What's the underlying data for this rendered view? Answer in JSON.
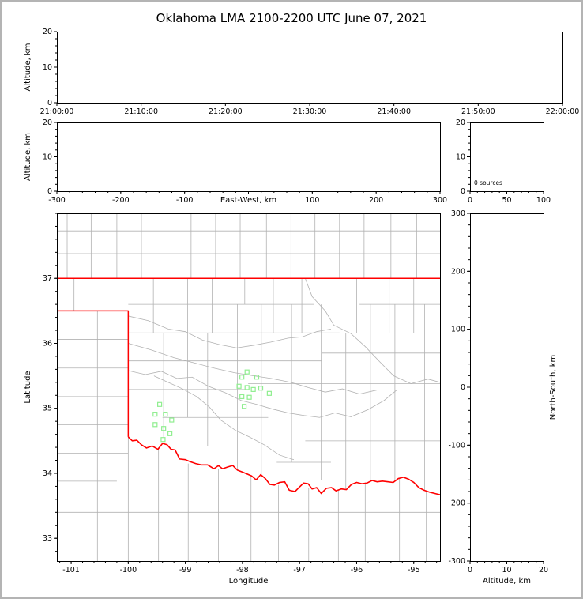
{
  "figure": {
    "title": "Oklahoma LMA 2100-2200 UTC June 07, 2021",
    "colors": {
      "background": "#ffffff",
      "frame": "#b4b4b4",
      "axis": "#000000",
      "county_line": "#b2b2b2",
      "river_line": "#b2b2b2",
      "state_border": "#ff0000",
      "station_marker": "#90ee90"
    }
  },
  "chart_data": [
    {
      "id": "time_height",
      "name": "time vs altitude panel",
      "type": "scatter",
      "ylabel": "Altitude, km",
      "ylim": [
        0,
        20
      ],
      "yticks": [
        0,
        10,
        20
      ],
      "y_tick_labels": [
        "0",
        "10",
        "20"
      ],
      "x_tick_labels": [
        "21:00:00",
        "21:10:00",
        "21:20:00",
        "21:30:00",
        "21:40:00",
        "21:50:00",
        "22:00:00"
      ],
      "points": []
    },
    {
      "id": "ew_height",
      "name": "east-west vs altitude panel",
      "type": "scatter",
      "xlabel": "East-West, km",
      "ylabel": "Altitude, km",
      "xlim": [
        -300,
        300
      ],
      "xticks": [
        -300,
        -200,
        -100,
        0,
        100,
        200,
        300
      ],
      "x_tick_labels": [
        "-300",
        "-200",
        "-100",
        "",
        "100",
        "200",
        "300"
      ],
      "ylim": [
        0,
        20
      ],
      "yticks": [
        0,
        10,
        20
      ],
      "y_tick_labels": [
        "0",
        "10",
        "20"
      ],
      "points": []
    },
    {
      "id": "altitude_histogram",
      "name": "source count vs altitude panel",
      "type": "line",
      "annotation": "0 sources",
      "xlim": [
        0,
        100
      ],
      "xticks": [
        0,
        50,
        100
      ],
      "x_tick_labels": [
        "0",
        "50",
        "100"
      ],
      "ylim": [
        0,
        20
      ],
      "yticks": [
        0,
        10,
        20
      ],
      "y_tick_labels": [
        "20",
        "10",
        "0"
      ],
      "points": []
    },
    {
      "id": "plan_view",
      "name": "plan view map panel",
      "type": "scatter",
      "xlabel": "Longitude",
      "ylabel": "Latitude",
      "xlim": [
        -101.25,
        -94.54
      ],
      "xticks": [
        -101,
        -100,
        -99,
        -98,
        -97,
        -96,
        -95
      ],
      "x_tick_labels": [
        "-101",
        "-100",
        "-99",
        "-98",
        "-97",
        "-96",
        "-95"
      ],
      "ylim": [
        32.65,
        38.0
      ],
      "yticks": [
        33,
        34,
        35,
        36,
        37
      ],
      "y_tick_labels": [
        "33",
        "34",
        "35",
        "36",
        "37"
      ],
      "stations": [
        [
          -99.45,
          35.06
        ],
        [
          -99.53,
          34.91
        ],
        [
          -99.35,
          34.91
        ],
        [
          -99.24,
          34.82
        ],
        [
          -99.53,
          34.75
        ],
        [
          -99.38,
          34.69
        ],
        [
          -99.27,
          34.61
        ],
        [
          -99.39,
          34.52
        ],
        [
          -98.01,
          35.48
        ],
        [
          -97.92,
          35.56
        ],
        [
          -97.75,
          35.48
        ],
        [
          -98.06,
          35.34
        ],
        [
          -97.92,
          35.32
        ],
        [
          -97.81,
          35.29
        ],
        [
          -97.68,
          35.31
        ],
        [
          -98.01,
          35.18
        ],
        [
          -97.88,
          35.17
        ],
        [
          -97.97,
          35.03
        ],
        [
          -97.53,
          35.23
        ]
      ],
      "state_border": {
        "kansas_line": [
          [
            -101.25,
            37.0
          ],
          [
            -94.54,
            37.0
          ]
        ],
        "west_border": [
          [
            -101.25,
            36.5
          ],
          [
            -100.0,
            36.5
          ],
          [
            -100.0,
            34.56
          ]
        ],
        "red_river": [
          [
            -100.0,
            34.56
          ],
          [
            -99.93,
            34.5
          ],
          [
            -99.85,
            34.51
          ],
          [
            -99.77,
            34.44
          ],
          [
            -99.68,
            34.39
          ],
          [
            -99.58,
            34.42
          ],
          [
            -99.48,
            34.37
          ],
          [
            -99.4,
            34.46
          ],
          [
            -99.32,
            34.44
          ],
          [
            -99.25,
            34.37
          ],
          [
            -99.18,
            34.36
          ],
          [
            -99.1,
            34.22
          ],
          [
            -99.0,
            34.21
          ],
          [
            -98.92,
            34.18
          ],
          [
            -98.82,
            34.15
          ],
          [
            -98.72,
            34.13
          ],
          [
            -98.61,
            34.13
          ],
          [
            -98.5,
            34.07
          ],
          [
            -98.42,
            34.12
          ],
          [
            -98.35,
            34.07
          ],
          [
            -98.25,
            34.1
          ],
          [
            -98.17,
            34.12
          ],
          [
            -98.09,
            34.05
          ],
          [
            -98.0,
            34.02
          ],
          [
            -97.92,
            33.99
          ],
          [
            -97.84,
            33.96
          ],
          [
            -97.76,
            33.9
          ],
          [
            -97.68,
            33.98
          ],
          [
            -97.6,
            33.92
          ],
          [
            -97.52,
            33.83
          ],
          [
            -97.44,
            33.82
          ],
          [
            -97.35,
            33.86
          ],
          [
            -97.26,
            33.87
          ],
          [
            -97.18,
            33.74
          ],
          [
            -97.08,
            33.72
          ],
          [
            -97.0,
            33.79
          ],
          [
            -96.93,
            33.85
          ],
          [
            -96.85,
            33.84
          ],
          [
            -96.78,
            33.76
          ],
          [
            -96.7,
            33.78
          ],
          [
            -96.62,
            33.69
          ],
          [
            -96.53,
            33.77
          ],
          [
            -96.44,
            33.78
          ],
          [
            -96.36,
            33.73
          ],
          [
            -96.27,
            33.76
          ],
          [
            -96.18,
            33.75
          ],
          [
            -96.09,
            33.83
          ],
          [
            -96.0,
            33.86
          ],
          [
            -95.91,
            33.84
          ],
          [
            -95.82,
            33.85
          ],
          [
            -95.73,
            33.89
          ],
          [
            -95.64,
            33.87
          ],
          [
            -95.55,
            33.88
          ],
          [
            -95.45,
            33.87
          ],
          [
            -95.36,
            33.86
          ],
          [
            -95.27,
            33.92
          ],
          [
            -95.18,
            33.94
          ],
          [
            -95.09,
            33.91
          ],
          [
            -95.0,
            33.86
          ],
          [
            -94.91,
            33.78
          ],
          [
            -94.82,
            33.74
          ],
          [
            -94.72,
            33.71
          ],
          [
            -94.63,
            33.69
          ],
          [
            -94.54,
            33.67
          ]
        ]
      },
      "counties": {
        "h": [
          [
            37.73,
            -101.25,
            -94.54
          ],
          [
            37.38,
            -101.25,
            -94.54
          ],
          [
            36.6,
            -100.0,
            -96.75
          ],
          [
            36.6,
            -95.95,
            -94.54
          ],
          [
            36.16,
            -100.0,
            -96.3
          ],
          [
            35.85,
            -96.62,
            -94.54
          ],
          [
            35.73,
            -100.0,
            -96.62
          ],
          [
            35.29,
            -100.0,
            -97.9
          ],
          [
            35.38,
            -97.9,
            -94.54
          ],
          [
            34.86,
            -99.4,
            -97.55
          ],
          [
            34.93,
            -97.55,
            -94.54
          ],
          [
            34.42,
            -98.6,
            -96.9
          ],
          [
            34.5,
            -96.9,
            -94.54
          ],
          [
            34.17,
            -97.4,
            -96.45
          ],
          [
            36.06,
            -101.25,
            -100.0
          ],
          [
            35.62,
            -101.25,
            -100.0
          ],
          [
            35.18,
            -101.25,
            -100.0
          ],
          [
            34.75,
            -101.25,
            -100.0
          ],
          [
            34.31,
            -101.25,
            -100.0
          ],
          [
            33.88,
            -101.25,
            -100.2
          ],
          [
            33.4,
            -101.25,
            -94.54
          ],
          [
            32.96,
            -101.25,
            -94.54
          ]
        ],
        "v": [
          [
            -100.95,
            36.5,
            37.0
          ],
          [
            -101.09,
            32.65,
            36.5
          ],
          [
            -100.54,
            32.65,
            36.5
          ],
          [
            -100.0,
            32.65,
            34.56
          ],
          [
            -99.56,
            36.16,
            37.0
          ],
          [
            -99.38,
            34.56,
            36.16
          ],
          [
            -98.96,
            35.73,
            37.0
          ],
          [
            -98.96,
            34.86,
            35.73
          ],
          [
            -98.53,
            36.16,
            37.0
          ],
          [
            -98.61,
            34.42,
            36.16
          ],
          [
            -98.09,
            34.07,
            36.6
          ],
          [
            -97.96,
            36.6,
            37.0
          ],
          [
            -97.67,
            33.95,
            36.6
          ],
          [
            -97.46,
            36.16,
            37.0
          ],
          [
            -97.14,
            34.17,
            36.6
          ],
          [
            -96.96,
            36.16,
            37.0
          ],
          [
            -96.62,
            33.9,
            36.6
          ],
          [
            -96.19,
            33.76,
            36.16
          ],
          [
            -96.0,
            36.16,
            37.0
          ],
          [
            -95.76,
            33.88,
            36.6
          ],
          [
            -95.43,
            36.16,
            37.0
          ],
          [
            -95.33,
            33.87,
            36.6
          ],
          [
            -95.0,
            36.16,
            37.0
          ],
          [
            -94.81,
            33.74,
            36.6
          ],
          [
            -99.47,
            32.65,
            34.4
          ],
          [
            -98.95,
            32.65,
            34.15
          ],
          [
            -98.42,
            32.65,
            34.06
          ],
          [
            -97.85,
            32.65,
            33.95
          ],
          [
            -97.37,
            32.65,
            33.82
          ],
          [
            -96.84,
            32.65,
            33.78
          ],
          [
            -96.32,
            32.65,
            33.74
          ],
          [
            -95.85,
            32.65,
            33.86
          ],
          [
            -95.25,
            32.65,
            33.92
          ],
          [
            -94.78,
            32.65,
            33.73
          ],
          [
            -101.07,
            37.0,
            38.0
          ],
          [
            -100.65,
            37.0,
            38.0
          ],
          [
            -100.2,
            37.0,
            38.0
          ],
          [
            -99.77,
            37.0,
            38.0
          ],
          [
            -99.32,
            37.0,
            38.0
          ],
          [
            -98.9,
            37.0,
            38.0
          ],
          [
            -98.47,
            37.0,
            38.0
          ],
          [
            -98.04,
            37.0,
            38.0
          ],
          [
            -97.58,
            37.0,
            38.0
          ],
          [
            -97.15,
            37.0,
            38.0
          ],
          [
            -96.73,
            37.0,
            38.0
          ],
          [
            -96.3,
            37.0,
            38.0
          ],
          [
            -95.87,
            37.0,
            38.0
          ],
          [
            -95.4,
            37.0,
            38.0
          ],
          [
            -94.95,
            37.0,
            38.0
          ]
        ]
      },
      "rivers": [
        [
          [
            -100.0,
            36.42
          ],
          [
            -99.65,
            36.35
          ],
          [
            -99.3,
            36.22
          ],
          [
            -99.0,
            36.18
          ],
          [
            -98.7,
            36.05
          ],
          [
            -98.4,
            35.98
          ],
          [
            -98.1,
            35.93
          ],
          [
            -97.8,
            35.97
          ],
          [
            -97.5,
            36.02
          ],
          [
            -97.2,
            36.08
          ],
          [
            -96.95,
            36.1
          ],
          [
            -96.7,
            36.18
          ],
          [
            -96.45,
            36.22
          ]
        ],
        [
          [
            -96.9,
            37.0
          ],
          [
            -96.78,
            36.72
          ],
          [
            -96.55,
            36.5
          ],
          [
            -96.4,
            36.28
          ],
          [
            -96.1,
            36.15
          ],
          [
            -95.85,
            35.95
          ],
          [
            -95.6,
            35.72
          ],
          [
            -95.35,
            35.5
          ],
          [
            -95.05,
            35.38
          ],
          [
            -94.75,
            35.45
          ],
          [
            -94.54,
            35.4
          ]
        ],
        [
          [
            -100.0,
            35.58
          ],
          [
            -99.7,
            35.52
          ],
          [
            -99.42,
            35.57
          ],
          [
            -99.15,
            35.46
          ],
          [
            -98.88,
            35.48
          ],
          [
            -98.6,
            35.34
          ],
          [
            -98.3,
            35.24
          ],
          [
            -98.02,
            35.12
          ],
          [
            -97.75,
            35.06
          ],
          [
            -97.48,
            34.99
          ],
          [
            -97.2,
            34.93
          ],
          [
            -96.92,
            34.89
          ],
          [
            -96.65,
            34.86
          ],
          [
            -96.38,
            34.93
          ],
          [
            -96.1,
            34.87
          ],
          [
            -95.8,
            34.98
          ],
          [
            -95.52,
            35.12
          ],
          [
            -95.3,
            35.28
          ]
        ],
        [
          [
            -99.55,
            35.5
          ],
          [
            -99.3,
            35.4
          ],
          [
            -99.05,
            35.3
          ],
          [
            -98.8,
            35.18
          ],
          [
            -98.58,
            35.02
          ],
          [
            -98.38,
            34.82
          ],
          [
            -98.12,
            34.66
          ],
          [
            -97.88,
            34.56
          ],
          [
            -97.62,
            34.44
          ],
          [
            -97.35,
            34.28
          ],
          [
            -97.1,
            34.21
          ]
        ],
        [
          [
            -100.0,
            36.0
          ],
          [
            -99.6,
            35.9
          ],
          [
            -99.2,
            35.78
          ],
          [
            -98.85,
            35.7
          ],
          [
            -98.5,
            35.62
          ],
          [
            -98.15,
            35.55
          ],
          [
            -97.8,
            35.5
          ],
          [
            -97.5,
            35.46
          ],
          [
            -97.15,
            35.4
          ],
          [
            -96.85,
            35.32
          ],
          [
            -96.55,
            35.25
          ],
          [
            -96.25,
            35.3
          ],
          [
            -95.95,
            35.22
          ],
          [
            -95.65,
            35.28
          ]
        ]
      ]
    },
    {
      "id": "ns_height",
      "name": "altitude vs north-south panel",
      "type": "scatter",
      "xlabel": "Altitude, km",
      "ylabel_right": "North-South, km",
      "xlim": [
        0,
        20
      ],
      "xticks": [
        0,
        10,
        20
      ],
      "x_tick_labels": [
        "0",
        "10",
        "20"
      ],
      "ylim": [
        -300,
        300
      ],
      "yticks": [
        -300,
        -200,
        -100,
        0,
        100,
        200,
        300
      ],
      "y_tick_labels": [
        "-300",
        "-200",
        "-100",
        "0",
        "100",
        "200",
        "300"
      ],
      "points": []
    }
  ]
}
